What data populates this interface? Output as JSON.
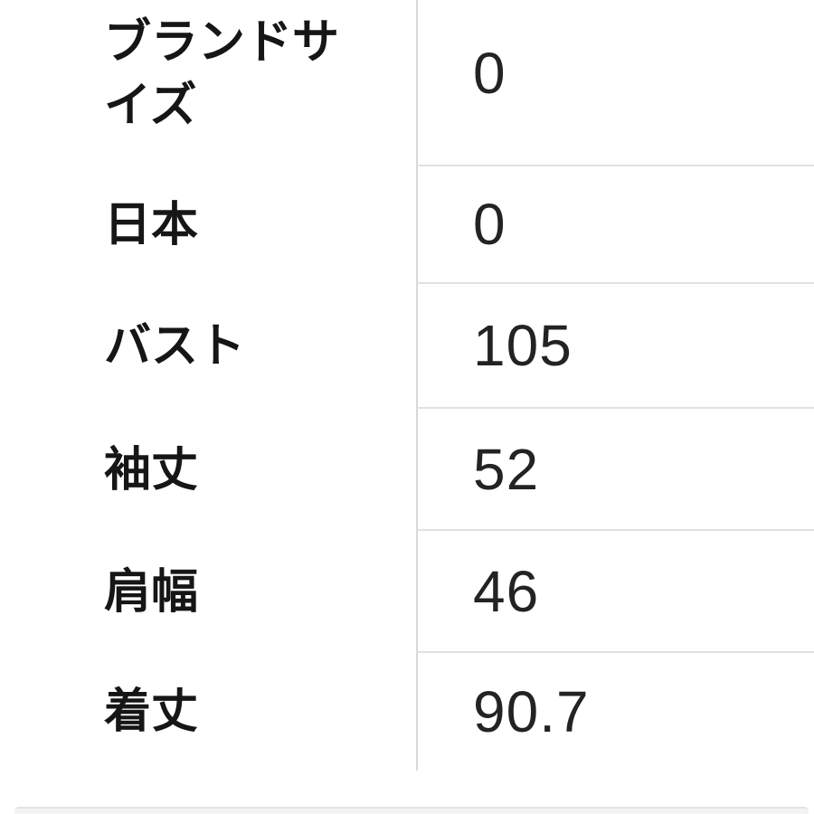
{
  "size_chart": {
    "rows": [
      {
        "label": "ブランドサイズ",
        "value": "0"
      },
      {
        "label": "日本",
        "value": "0"
      },
      {
        "label": "バスト",
        "value": "105"
      },
      {
        "label": "袖丈",
        "value": "52"
      },
      {
        "label": "肩幅",
        "value": "46"
      },
      {
        "label": "着丈",
        "value": "90.7"
      }
    ]
  },
  "colors": {
    "column_divider": "#d9d9d9",
    "row_divider": "#e1e1e1",
    "label_text": "#161616",
    "value_text": "#232323",
    "scrollbar_track": "#f4f4f4"
  }
}
